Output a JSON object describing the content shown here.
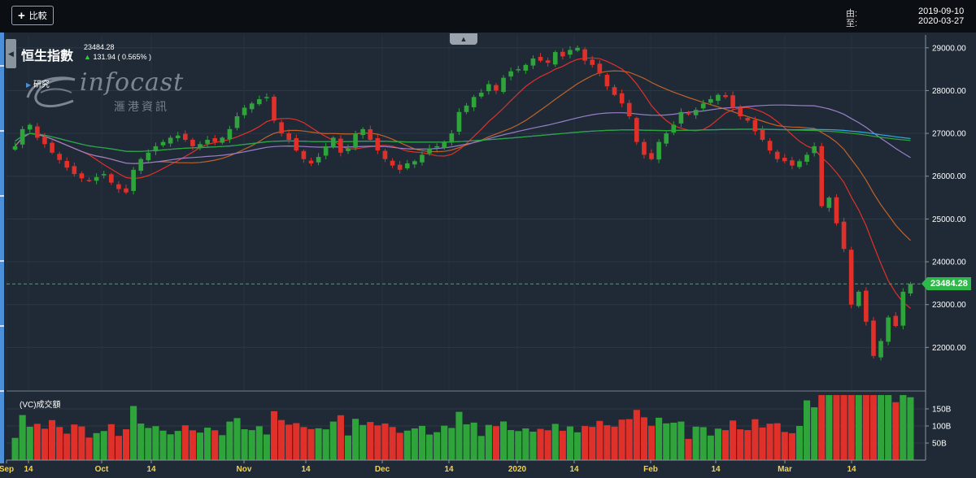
{
  "header": {
    "compare_label": "比較",
    "from_label": "由:",
    "to_label": "至:",
    "from_date": "2019-09-10",
    "to_date": "2020-03-27"
  },
  "index": {
    "name": "恒生指數",
    "price": "23484.28",
    "change": "131.94 ( 0.565% )"
  },
  "research_label": "研究",
  "logo": {
    "word": "infocast",
    "cn": "滙港資訊"
  },
  "volume_title": "(VC)成交額",
  "last_price_badge": "23484.28",
  "colors": {
    "up": "#2ea43a",
    "down": "#e0302a",
    "badge": "#2fb84a"
  },
  "chart_data": {
    "type": "candlestick",
    "price_axis": {
      "ticks": [
        "22000.00",
        "23000.00",
        "24000.00",
        "25000.00",
        "26000.00",
        "27000.00",
        "28000.00",
        "29000.00"
      ],
      "ylim": [
        21000,
        29300
      ]
    },
    "volume_axis": {
      "ticks": [
        "50B",
        "100B",
        "150B"
      ]
    },
    "x_labels": [
      "Sep",
      "14",
      "Oct",
      "14",
      "Nov",
      "14",
      "Dec",
      "14",
      "2020",
      "14",
      "Feb",
      "14",
      "Mar",
      "14"
    ],
    "last_price": 23484.28,
    "moving_average_colors": [
      "#e0302a",
      "#c0622a",
      "#9a7fc8",
      "#2fa8e0",
      "#2ea43a"
    ],
    "closes": [
      26700,
      27100,
      27200,
      26900,
      26750,
      26550,
      26380,
      26200,
      26050,
      25950,
      25900,
      25980,
      26050,
      25850,
      25700,
      25620,
      26150,
      26400,
      26550,
      26700,
      26800,
      26900,
      26950,
      26850,
      26700,
      26750,
      26850,
      26800,
      26900,
      27100,
      27400,
      27600,
      27700,
      27800,
      27850,
      27300,
      27000,
      26850,
      26600,
      26400,
      26300,
      26450,
      26700,
      26900,
      26550,
      26650,
      27000,
      27100,
      26850,
      26600,
      26400,
      26250,
      26150,
      26300,
      26350,
      26500,
      26650,
      26700,
      26800,
      27000,
      27500,
      27650,
      27850,
      27950,
      28150,
      28000,
      28300,
      28450,
      28500,
      28600,
      28750,
      28700,
      28650,
      28900,
      28800,
      28950,
      29000,
      28700,
      28600,
      28400,
      28100,
      27900,
      27700,
      27400,
      26800,
      26500,
      26400,
      26800,
      27000,
      27200,
      27500,
      27450,
      27550,
      27700,
      27800,
      27900,
      27850,
      27600,
      27400,
      27300,
      27050,
      26850,
      26600,
      26400,
      26350,
      26250,
      26350,
      26500,
      26700,
      25300,
      25500,
      24900,
      24300,
      23000,
      23300,
      22600,
      21800,
      22150,
      22700,
      22500,
      23300,
      23484
    ]
  }
}
